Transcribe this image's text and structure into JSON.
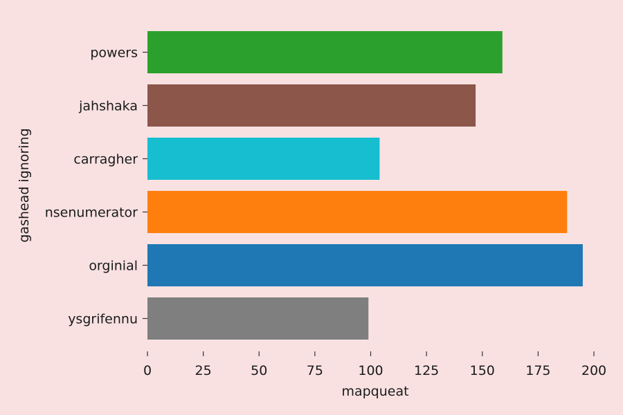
{
  "chart_data": {
    "type": "bar",
    "orientation": "horizontal",
    "title": "",
    "xlabel": "mapqueat",
    "ylabel": "gashead ignoring",
    "categories": [
      "powers",
      "jahshaka",
      "carragher",
      "nsenumerator",
      "orginial",
      "ysgrifennu"
    ],
    "values": [
      159,
      147,
      104,
      188,
      195,
      99
    ],
    "colors": [
      "#2ca02c",
      "#8c564b",
      "#17becf",
      "#ff7f0e",
      "#1f77b4",
      "#7f7f7f"
    ],
    "xlim": [
      0,
      200
    ],
    "xticks": [
      0,
      25,
      50,
      75,
      100,
      125,
      150,
      175,
      200
    ],
    "grid": false,
    "legend": "none",
    "background": "#f9e1e2"
  }
}
